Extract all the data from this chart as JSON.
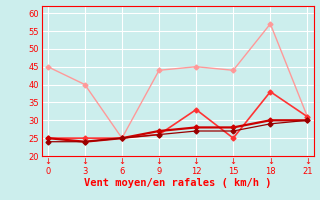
{
  "background_color": "#cceeed",
  "grid_color": "#ffffff",
  "xlabel": "Vent moyen/en rafales ( km/h )",
  "xlabel_color": "#ff0000",
  "xlim": [
    -0.5,
    21.5
  ],
  "ylim": [
    20,
    62
  ],
  "xticks": [
    0,
    3,
    6,
    9,
    12,
    15,
    18,
    21
  ],
  "yticks": [
    20,
    25,
    30,
    35,
    40,
    45,
    50,
    55,
    60
  ],
  "lines": [
    {
      "x": [
        0,
        3,
        6,
        9,
        12,
        15,
        18,
        21
      ],
      "y": [
        45,
        40,
        25,
        44,
        45,
        44,
        57,
        31
      ],
      "color": "#ff9999",
      "linewidth": 1.0,
      "marker": "D",
      "markersize": 2.5
    },
    {
      "x": [
        0,
        3,
        6,
        9,
        12,
        15,
        18,
        21
      ],
      "y": [
        25,
        25,
        25,
        26,
        33,
        25,
        38,
        31
      ],
      "color": "#ff3333",
      "linewidth": 1.2,
      "marker": "D",
      "markersize": 2.5
    },
    {
      "x": [
        0,
        3,
        6,
        9,
        12,
        15,
        18,
        21
      ],
      "y": [
        25,
        24,
        25,
        27,
        28,
        28,
        30,
        30
      ],
      "color": "#cc0000",
      "linewidth": 1.6,
      "marker": "D",
      "markersize": 2.5
    },
    {
      "x": [
        0,
        3,
        6,
        9,
        12,
        15,
        18,
        21
      ],
      "y": [
        24,
        24,
        25,
        26,
        27,
        27,
        29,
        30
      ],
      "color": "#990000",
      "linewidth": 0.9,
      "marker": "D",
      "markersize": 2.5
    }
  ],
  "tick_color": "#ff0000",
  "tick_fontsize": 6,
  "xlabel_fontsize": 7.5,
  "ytick_fontsize": 6
}
